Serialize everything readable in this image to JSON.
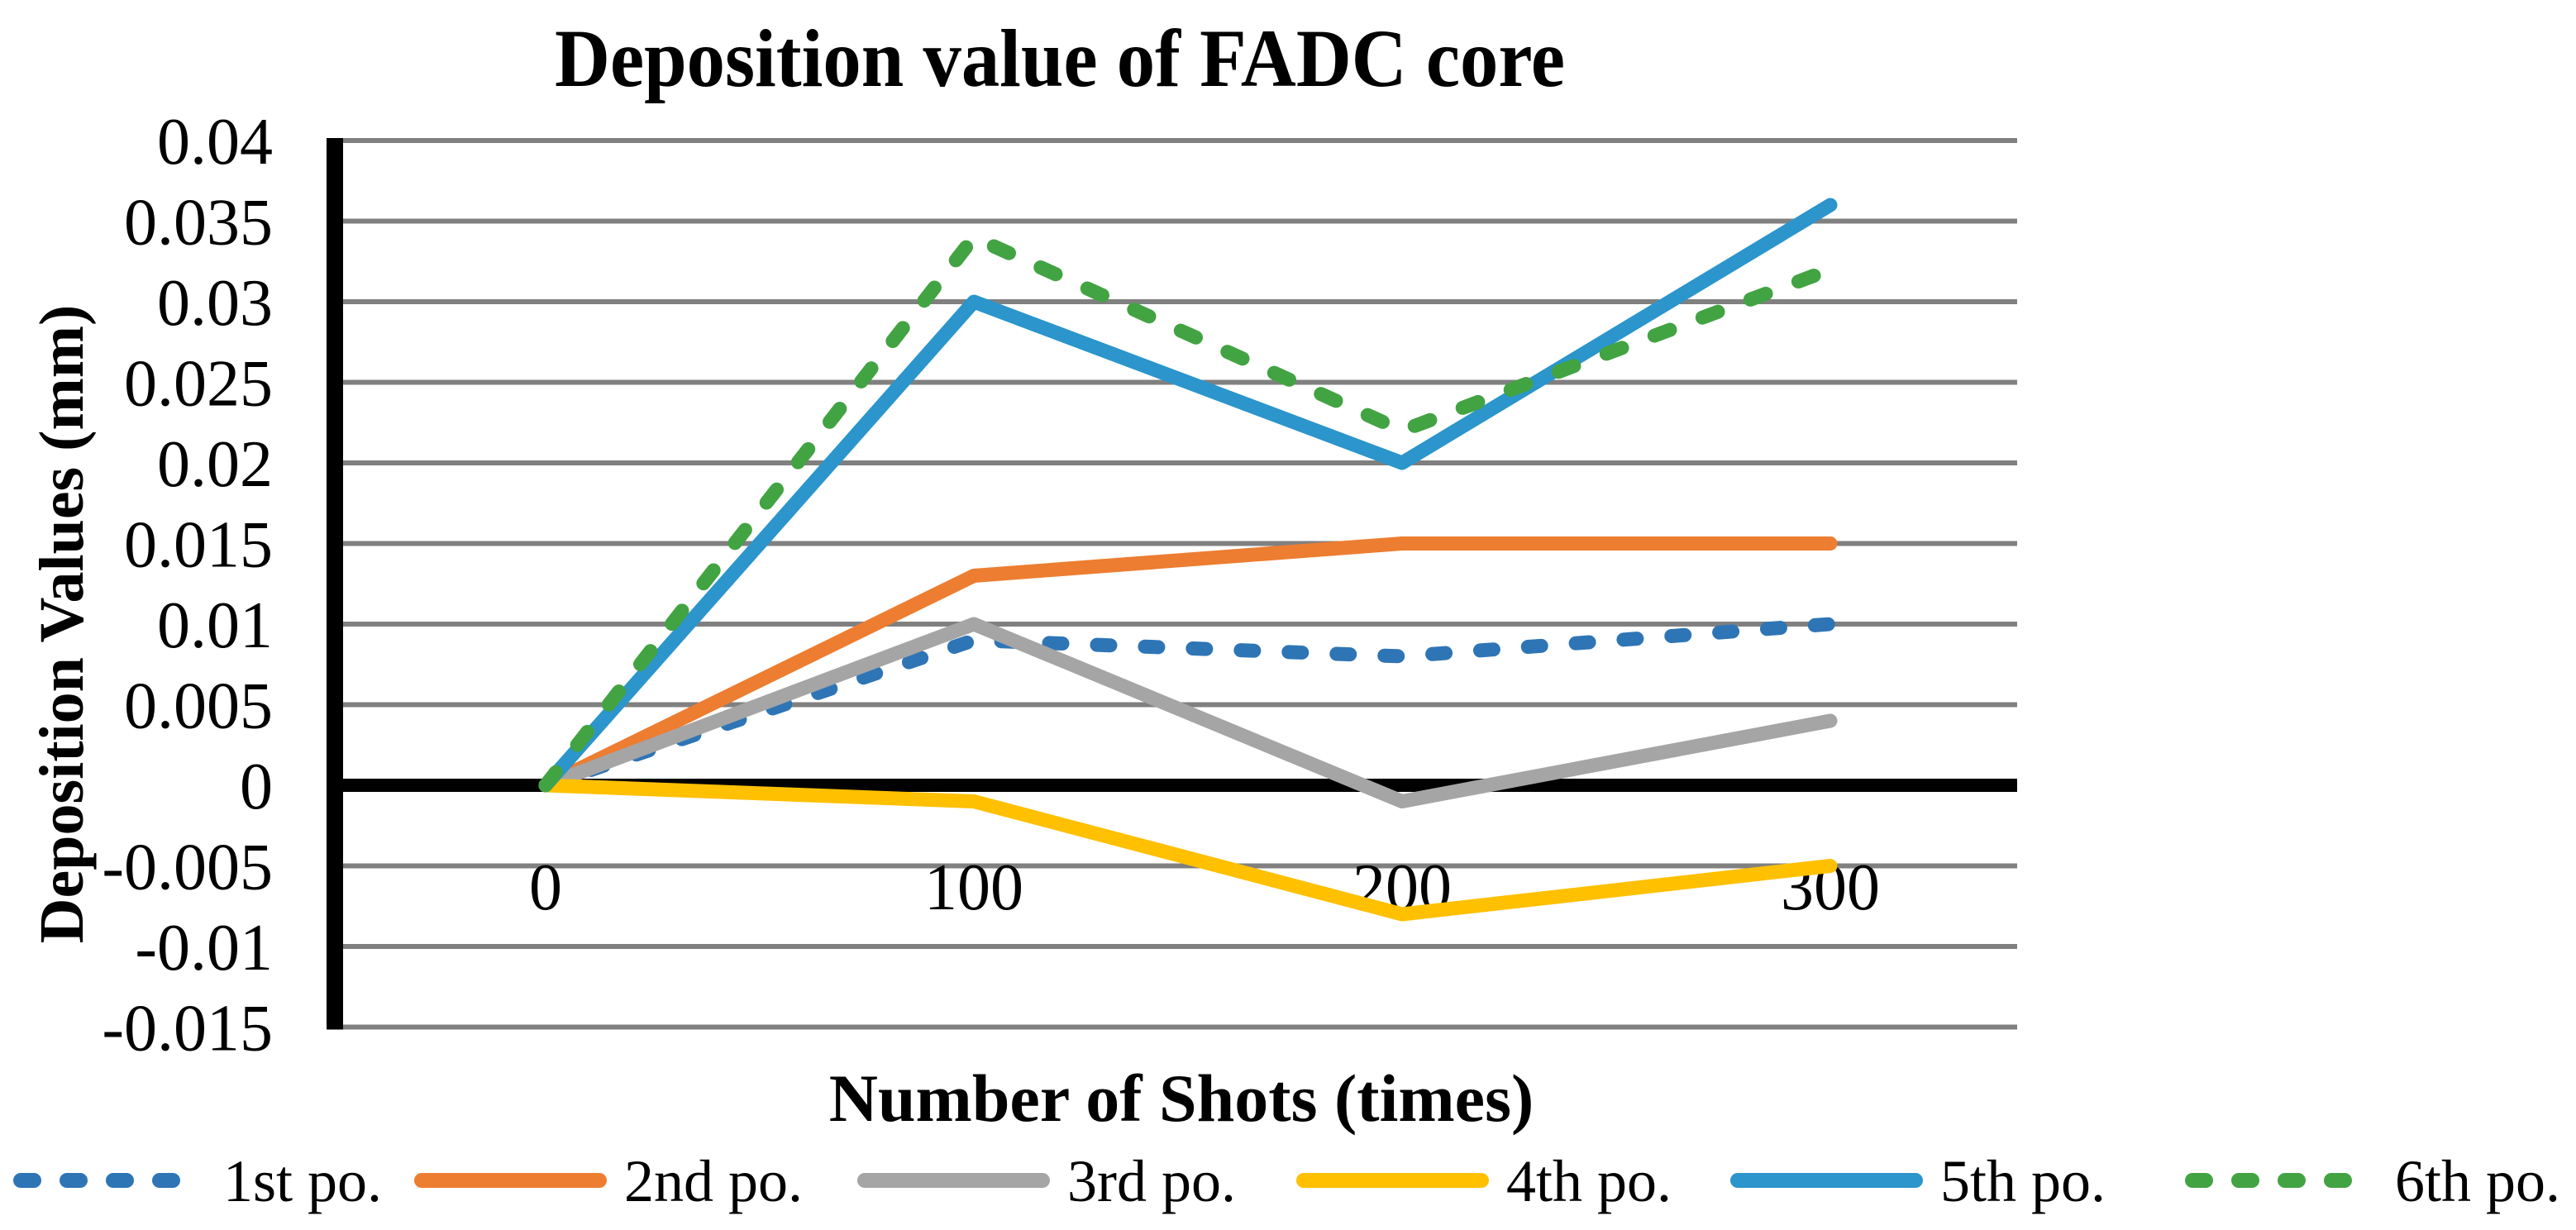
{
  "background": "#FFFFFF",
  "chart_data": {
    "type": "line",
    "title": "Deposition value of FADC core",
    "xlabel": "Number of Shots (times)",
    "ylabel": "Deposition Values (mm)",
    "x": [
      0,
      100,
      200,
      300
    ],
    "x_categories": [
      "0",
      "100",
      "200",
      "300"
    ],
    "ylim": [
      -0.015,
      0.04
    ],
    "y_tick_step": 0.005,
    "y_ticks": [
      0.04,
      0.035,
      0.03,
      0.025,
      0.02,
      0.015,
      0.01,
      0.005,
      0,
      -0.005,
      -0.01,
      -0.015
    ],
    "y_tick_labels": [
      "0.04",
      "0.035",
      "0.03",
      "0.025",
      "0.02",
      "0.015",
      "0.01",
      "0.005",
      "0",
      "-0.005",
      "-0.01",
      "-0.015"
    ],
    "grid": true,
    "gridline_color": "#808080",
    "axis_color": "#000000",
    "legend_position": "bottom",
    "series": [
      {
        "name": "1st po.",
        "color": "#2E75B6",
        "dashed": true,
        "values": [
          0,
          0.009,
          0.008,
          0.01
        ]
      },
      {
        "name": "2nd po.",
        "color": "#ED7D31",
        "dashed": false,
        "values": [
          0,
          0.013,
          0.015,
          0.015
        ]
      },
      {
        "name": "3rd po.",
        "color": "#A5A5A5",
        "dashed": false,
        "values": [
          0,
          0.01,
          -0.001,
          0.004
        ]
      },
      {
        "name": "4th po.",
        "color": "#FFC000",
        "dashed": false,
        "values": [
          0,
          -0.001,
          -0.008,
          -0.005
        ]
      },
      {
        "name": "5th po.",
        "color": "#2B95CC",
        "dashed": false,
        "values": [
          0,
          0.03,
          0.02,
          0.036
        ]
      },
      {
        "name": "6th po.",
        "color": "#42A342",
        "dashed": true,
        "values": [
          0,
          0.034,
          0.022,
          0.032
        ]
      }
    ]
  }
}
